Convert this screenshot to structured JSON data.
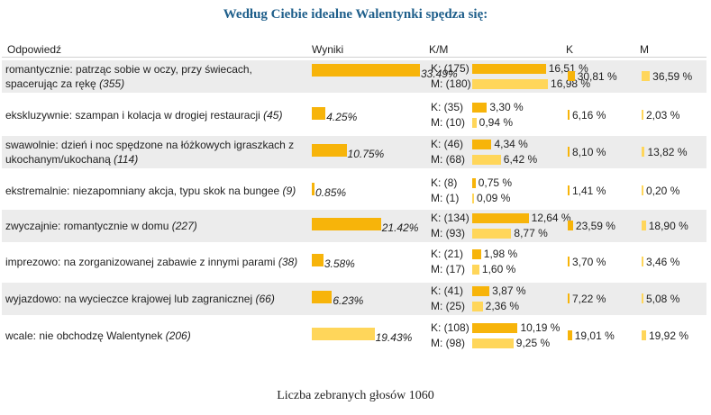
{
  "title": "Według Ciebie idealne Walentynki spędza się:",
  "headers": {
    "answer": "Odpowiedź",
    "results": "Wyniki",
    "km": "K/M",
    "k": "K",
    "m": "M"
  },
  "rows": [
    {
      "text": "romantycznie: patrząc sobie w oczy, przy świecach, spacerując za rękę",
      "count": "(355)",
      "pct": 33.49,
      "pct_label": "33.49%",
      "k_count": "K: (175)",
      "k_pct": 16.51,
      "k_pct_label": "16,51 %",
      "m_count": "M: (180)",
      "m_pct": 16.98,
      "m_pct_label": "16,98 %",
      "k_share": 30.81,
      "k_share_label": "30,81 %",
      "m_share": 36.59,
      "m_share_label": "36,59 %"
    },
    {
      "text": "ekskluzywnie: szampan i kolacja w drogiej restauracji",
      "count": "(45)",
      "pct": 4.25,
      "pct_label": "4.25%",
      "k_count": "K: (35)",
      "k_pct": 3.3,
      "k_pct_label": "3,30 %",
      "m_count": "M: (10)",
      "m_pct": 0.94,
      "m_pct_label": "0,94 %",
      "k_share": 6.16,
      "k_share_label": "6,16 %",
      "m_share": 2.03,
      "m_share_label": "2,03 %"
    },
    {
      "text": "swawolnie: dzień i noc spędzone na łóżkowych igraszkach z ukochanym/ukochaną",
      "count": "(114)",
      "pct": 10.75,
      "pct_label": "10.75%",
      "k_count": "K: (46)",
      "k_pct": 4.34,
      "k_pct_label": "4,34 %",
      "m_count": "M: (68)",
      "m_pct": 6.42,
      "m_pct_label": "6,42 %",
      "k_share": 8.1,
      "k_share_label": "8,10 %",
      "m_share": 13.82,
      "m_share_label": "13,82 %"
    },
    {
      "text": "ekstremalnie: niezapomniany akcja, typu skok na bungee",
      "count": "(9)",
      "pct": 0.85,
      "pct_label": "0.85%",
      "k_count": "K: (8)",
      "k_pct": 0.75,
      "k_pct_label": "0,75 %",
      "m_count": "M: (1)",
      "m_pct": 0.09,
      "m_pct_label": "0,09 %",
      "k_share": 1.41,
      "k_share_label": "1,41 %",
      "m_share": 0.2,
      "m_share_label": "0,20 %"
    },
    {
      "text": "zwyczajnie: romantycznie w domu",
      "count": "(227)",
      "pct": 21.42,
      "pct_label": "21.42%",
      "k_count": "K: (134)",
      "k_pct": 12.64,
      "k_pct_label": "12,64 %",
      "m_count": "M: (93)",
      "m_pct": 8.77,
      "m_pct_label": "8,77 %",
      "k_share": 23.59,
      "k_share_label": "23,59 %",
      "m_share": 18.9,
      "m_share_label": "18,90 %"
    },
    {
      "text": "imprezowo: na zorganizowanej zabawie z innymi parami",
      "count": "(38)",
      "pct": 3.58,
      "pct_label": "3.58%",
      "k_count": "K: (21)",
      "k_pct": 1.98,
      "k_pct_label": "1,98 %",
      "m_count": "M: (17)",
      "m_pct": 1.6,
      "m_pct_label": "1,60 %",
      "k_share": 3.7,
      "k_share_label": "3,70 %",
      "m_share": 3.46,
      "m_share_label": "3,46 %"
    },
    {
      "text": "wyjazdowo: na wycieczce krajowej lub zagranicznej",
      "count": "(66)",
      "pct": 6.23,
      "pct_label": "6.23%",
      "k_count": "K: (41)",
      "k_pct": 3.87,
      "k_pct_label": "3,87 %",
      "m_count": "M: (25)",
      "m_pct": 2.36,
      "m_pct_label": "2,36 %",
      "k_share": 7.22,
      "k_share_label": "7,22 %",
      "m_share": 5.08,
      "m_share_label": "5,08 %"
    },
    {
      "text": "wcale: nie obchodzę Walentynek",
      "count": "(206)",
      "pct": 19.43,
      "pct_label": "19.43%",
      "k_count": "K: (108)",
      "k_pct": 10.19,
      "k_pct_label": "10,19 %",
      "m_count": "M: (98)",
      "m_pct": 9.25,
      "m_pct_label": "9,25 %",
      "k_share": 19.01,
      "k_share_label": "19,01 %",
      "m_share": 19.92,
      "m_share_label": "19,92 %"
    }
  ],
  "footer": "Liczba zebranych głosów 1060",
  "colors": {
    "title": "#1f5f8b",
    "bar_dark": "#f7b40a",
    "bar_light": "#ffd65a",
    "row_shade": "#ececec"
  },
  "chart_data": {
    "type": "bar",
    "title": "Według Ciebie idealne Walentynki spędza się:",
    "categories": [
      "romantycznie",
      "ekskluzywnie",
      "swawolnie",
      "ekstremalnie",
      "zwyczajnie",
      "imprezowo",
      "wyjazdowo",
      "wcale"
    ],
    "series": [
      {
        "name": "Wyniki",
        "values": [
          33.49,
          4.25,
          10.75,
          0.85,
          21.42,
          3.58,
          6.23,
          19.43
        ]
      },
      {
        "name": "K",
        "values": [
          30.81,
          6.16,
          8.1,
          1.41,
          23.59,
          3.7,
          7.22,
          19.01
        ]
      },
      {
        "name": "M",
        "values": [
          36.59,
          2.03,
          13.82,
          0.2,
          18.9,
          3.46,
          5.08,
          19.92
        ]
      }
    ]
  }
}
